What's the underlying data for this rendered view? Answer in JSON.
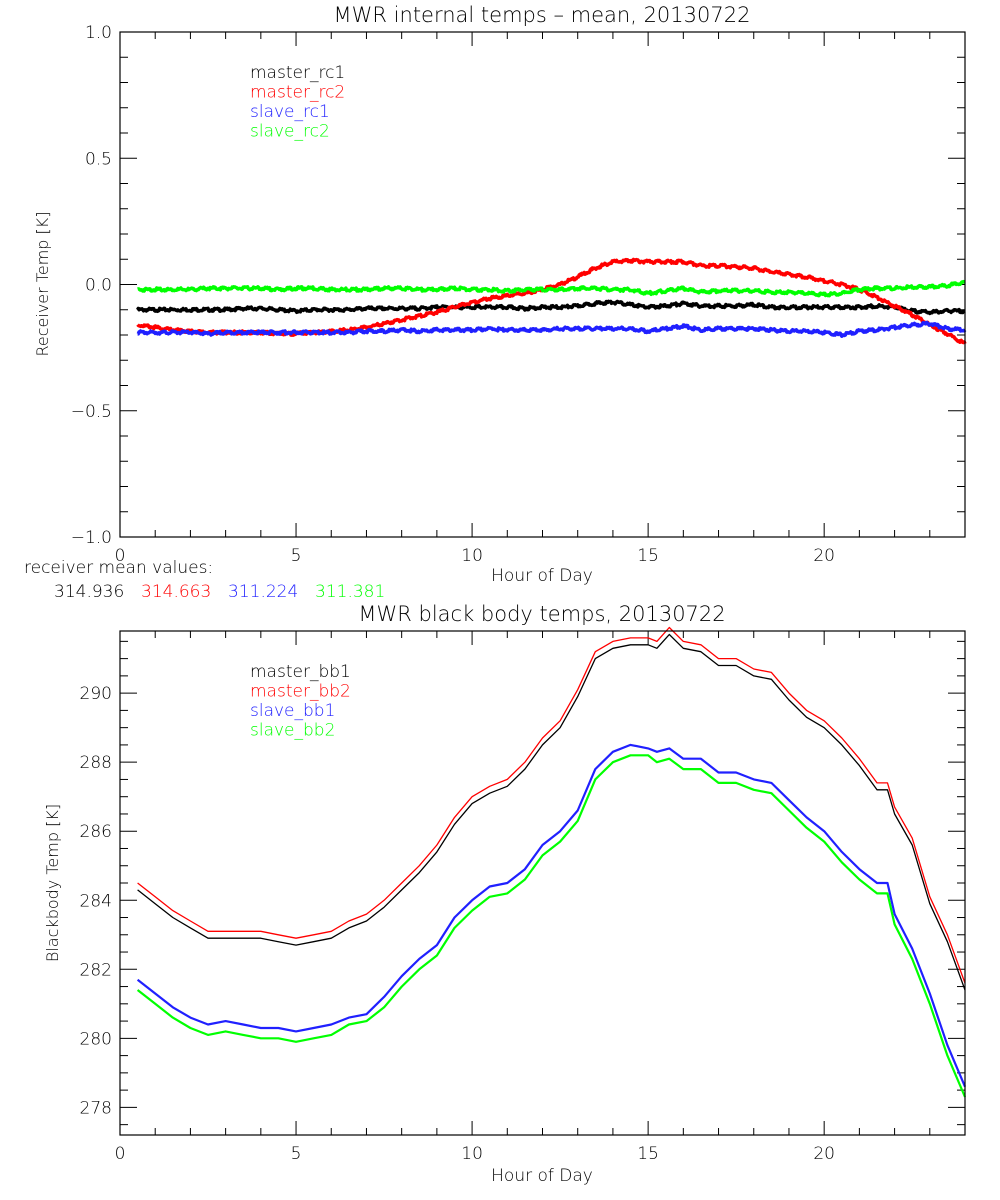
{
  "chart_data": [
    {
      "type": "line",
      "title": "MWR internal temps – mean, 20130722",
      "xlabel": "Hour of Day",
      "ylabel": "Receiver Temp [K]",
      "xlim": [
        0,
        24
      ],
      "ylim": [
        -1.0,
        1.0
      ],
      "xticks": [
        "0",
        "5",
        "10",
        "15",
        "20"
      ],
      "xtick_values": [
        0,
        5,
        10,
        15,
        20
      ],
      "yticks": [
        "1.0",
        "0.5",
        "0.0",
        "−0.5",
        "−1.0"
      ],
      "ytick_values": [
        1.0,
        0.5,
        0.0,
        -0.5,
        -1.0
      ],
      "grid": false,
      "legend_position": "top-left",
      "x": [
        0.5,
        1,
        1.5,
        2,
        2.5,
        3,
        3.5,
        4,
        4.5,
        5,
        5.5,
        6,
        6.5,
        7,
        7.5,
        8,
        8.5,
        9,
        9.5,
        10,
        10.5,
        11,
        11.5,
        12,
        12.5,
        13,
        13.5,
        14,
        14.5,
        15,
        15.5,
        16,
        16.5,
        17,
        17.5,
        18,
        18.5,
        19,
        19.5,
        20,
        20.5,
        21,
        21.5,
        22,
        22.5,
        23,
        23.5,
        24
      ],
      "series": [
        {
          "name": "master_rc1",
          "color": "#000000",
          "values": [
            -0.1,
            -0.1,
            -0.1,
            -0.1,
            -0.1,
            -0.1,
            -0.095,
            -0.095,
            -0.1,
            -0.105,
            -0.1,
            -0.1,
            -0.1,
            -0.095,
            -0.095,
            -0.095,
            -0.095,
            -0.09,
            -0.09,
            -0.09,
            -0.09,
            -0.09,
            -0.095,
            -0.09,
            -0.09,
            -0.085,
            -0.075,
            -0.07,
            -0.08,
            -0.09,
            -0.085,
            -0.075,
            -0.085,
            -0.085,
            -0.085,
            -0.08,
            -0.09,
            -0.09,
            -0.09,
            -0.09,
            -0.09,
            -0.09,
            -0.085,
            -0.09,
            -0.105,
            -0.11,
            -0.105,
            -0.105
          ]
        },
        {
          "name": "master_rc2",
          "color": "#ff0000",
          "values": [
            -0.16,
            -0.17,
            -0.18,
            -0.185,
            -0.19,
            -0.19,
            -0.19,
            -0.19,
            -0.195,
            -0.195,
            -0.19,
            -0.185,
            -0.18,
            -0.17,
            -0.155,
            -0.14,
            -0.125,
            -0.11,
            -0.09,
            -0.07,
            -0.055,
            -0.045,
            -0.035,
            -0.02,
            0.0,
            0.03,
            0.065,
            0.09,
            0.095,
            0.09,
            0.09,
            0.09,
            0.075,
            0.075,
            0.07,
            0.065,
            0.05,
            0.04,
            0.03,
            0.015,
            0.0,
            -0.02,
            -0.05,
            -0.085,
            -0.12,
            -0.16,
            -0.195,
            -0.235
          ]
        },
        {
          "name": "slave_rc1",
          "color": "#2020ff",
          "values": [
            -0.19,
            -0.19,
            -0.19,
            -0.19,
            -0.195,
            -0.19,
            -0.19,
            -0.19,
            -0.19,
            -0.19,
            -0.19,
            -0.19,
            -0.19,
            -0.185,
            -0.185,
            -0.18,
            -0.185,
            -0.18,
            -0.18,
            -0.18,
            -0.175,
            -0.18,
            -0.18,
            -0.18,
            -0.175,
            -0.175,
            -0.175,
            -0.175,
            -0.175,
            -0.185,
            -0.175,
            -0.165,
            -0.18,
            -0.175,
            -0.175,
            -0.175,
            -0.18,
            -0.185,
            -0.185,
            -0.19,
            -0.2,
            -0.185,
            -0.18,
            -0.17,
            -0.16,
            -0.155,
            -0.175,
            -0.18
          ]
        },
        {
          "name": "slave_rc2",
          "color": "#00ff00",
          "values": [
            -0.02,
            -0.02,
            -0.02,
            -0.02,
            -0.015,
            -0.015,
            -0.015,
            -0.015,
            -0.02,
            -0.015,
            -0.015,
            -0.02,
            -0.02,
            -0.02,
            -0.015,
            -0.015,
            -0.02,
            -0.02,
            -0.015,
            -0.02,
            -0.02,
            -0.025,
            -0.02,
            -0.02,
            -0.02,
            -0.015,
            -0.015,
            -0.02,
            -0.02,
            -0.035,
            -0.025,
            -0.015,
            -0.03,
            -0.025,
            -0.025,
            -0.025,
            -0.03,
            -0.03,
            -0.035,
            -0.04,
            -0.035,
            -0.02,
            -0.015,
            -0.015,
            -0.01,
            -0.01,
            -0.005,
            0.01
          ]
        }
      ]
    },
    {
      "type": "line",
      "title": "MWR black body temps, 20130722",
      "xlabel": "Hour of Day",
      "ylabel": "Blackbody Temp [K]",
      "xlim": [
        0,
        24
      ],
      "ylim": [
        277.2,
        291.8
      ],
      "xticks": [
        "0",
        "5",
        "10",
        "15",
        "20"
      ],
      "xtick_values": [
        0,
        5,
        10,
        15,
        20
      ],
      "yticks": [
        "290",
        "288",
        "286",
        "284",
        "282",
        "280",
        "278"
      ],
      "ytick_values": [
        290,
        288,
        286,
        284,
        282,
        280,
        278
      ],
      "grid": false,
      "legend_position": "top-left",
      "x": [
        0.5,
        1,
        1.5,
        2,
        2.5,
        3,
        3.5,
        4,
        4.5,
        5,
        5.5,
        6,
        6.5,
        7,
        7.5,
        8,
        8.5,
        9,
        9.5,
        10,
        10.5,
        11,
        11.5,
        12,
        12.5,
        13,
        13.5,
        14,
        14.5,
        15,
        15.25,
        15.6,
        16,
        16.5,
        17,
        17.5,
        18,
        18.5,
        19,
        19.5,
        20,
        20.5,
        21,
        21.5,
        21.8,
        22,
        22.5,
        23,
        23.5,
        24
      ],
      "series": [
        {
          "name": "master_bb1",
          "color": "#000000",
          "values": [
            284.3,
            283.9,
            283.5,
            283.2,
            282.9,
            282.9,
            282.9,
            282.9,
            282.8,
            282.7,
            282.8,
            282.9,
            283.2,
            283.4,
            283.8,
            284.3,
            284.8,
            285.4,
            286.2,
            286.8,
            287.1,
            287.3,
            287.8,
            288.5,
            289.0,
            289.9,
            291.0,
            291.3,
            291.4,
            291.4,
            291.3,
            291.7,
            291.3,
            291.2,
            290.8,
            290.8,
            290.5,
            290.4,
            289.8,
            289.3,
            289.0,
            288.5,
            287.9,
            287.2,
            287.2,
            286.5,
            285.6,
            283.9,
            282.8,
            281.4
          ]
        },
        {
          "name": "master_bb2",
          "color": "#ff0000",
          "values": [
            284.5,
            284.1,
            283.7,
            283.4,
            283.1,
            283.1,
            283.1,
            283.1,
            283.0,
            282.9,
            283.0,
            283.1,
            283.4,
            283.6,
            284.0,
            284.5,
            285.0,
            285.6,
            286.4,
            287.0,
            287.3,
            287.5,
            288.0,
            288.7,
            289.2,
            290.1,
            291.2,
            291.5,
            291.6,
            291.6,
            291.5,
            291.9,
            291.5,
            291.4,
            291.0,
            291.0,
            290.7,
            290.6,
            290.0,
            289.5,
            289.2,
            288.7,
            288.1,
            287.4,
            287.4,
            286.7,
            285.8,
            284.1,
            283.0,
            281.6
          ]
        },
        {
          "name": "slave_bb1",
          "color": "#2020ff",
          "values": [
            281.7,
            281.3,
            280.9,
            280.6,
            280.4,
            280.5,
            280.4,
            280.3,
            280.3,
            280.2,
            280.3,
            280.4,
            280.6,
            280.7,
            281.2,
            281.8,
            282.3,
            282.7,
            283.5,
            284.0,
            284.4,
            284.5,
            284.9,
            285.6,
            286.0,
            286.6,
            287.8,
            288.3,
            288.5,
            288.4,
            288.3,
            288.4,
            288.1,
            288.1,
            287.7,
            287.7,
            287.5,
            287.4,
            286.9,
            286.4,
            286.0,
            285.4,
            284.9,
            284.5,
            284.5,
            283.6,
            282.6,
            281.3,
            279.8,
            278.6
          ]
        },
        {
          "name": "slave_bb2",
          "color": "#00ff00",
          "values": [
            281.4,
            281.0,
            280.6,
            280.3,
            280.1,
            280.2,
            280.1,
            280.0,
            280.0,
            279.9,
            280.0,
            280.1,
            280.4,
            280.5,
            280.9,
            281.5,
            282.0,
            282.4,
            283.2,
            283.7,
            284.1,
            284.2,
            284.6,
            285.3,
            285.7,
            286.3,
            287.5,
            288.0,
            288.2,
            288.2,
            288.0,
            288.1,
            287.8,
            287.8,
            287.4,
            287.4,
            287.2,
            287.1,
            286.6,
            286.1,
            285.7,
            285.1,
            284.6,
            284.2,
            284.2,
            283.3,
            282.3,
            281.0,
            279.5,
            278.3
          ]
        }
      ]
    }
  ],
  "annotations": {
    "receiver_mean_label": "receiver mean values:",
    "receiver_means": [
      {
        "value": "314.936",
        "color": "#000000"
      },
      {
        "value": "314.663",
        "color": "#ff0000"
      },
      {
        "value": "311.224",
        "color": "#2020ff"
      },
      {
        "value": "311.381",
        "color": "#00ff00"
      }
    ]
  }
}
